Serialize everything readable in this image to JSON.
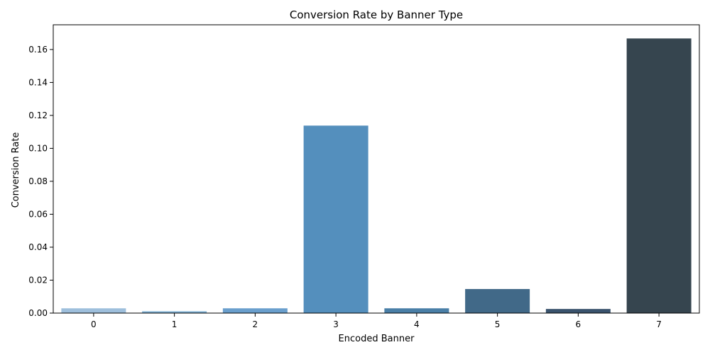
{
  "chart_data": {
    "type": "bar",
    "title": "Conversion Rate by Banner Type",
    "xlabel": "Encoded Banner",
    "ylabel": "Conversion Rate",
    "categories": [
      "0",
      "1",
      "2",
      "3",
      "4",
      "5",
      "6",
      "7"
    ],
    "values": [
      0.0029,
      0.0011,
      0.0029,
      0.1138,
      0.0029,
      0.0146,
      0.0025,
      0.1667
    ],
    "colors": [
      "#9ebfdc",
      "#7fb1d4",
      "#6a9fcd",
      "#548fbd",
      "#4a7fa7",
      "#416988",
      "#3a536d",
      "#36454f"
    ],
    "ylim": [
      0,
      0.175
    ],
    "yticks": [
      0.0,
      0.02,
      0.04,
      0.06,
      0.08,
      0.1,
      0.12,
      0.14,
      0.16
    ],
    "ytick_labels": [
      "0.00",
      "0.02",
      "0.04",
      "0.06",
      "0.08",
      "0.10",
      "0.12",
      "0.14",
      "0.16"
    ],
    "grid": false,
    "legend": "none"
  }
}
